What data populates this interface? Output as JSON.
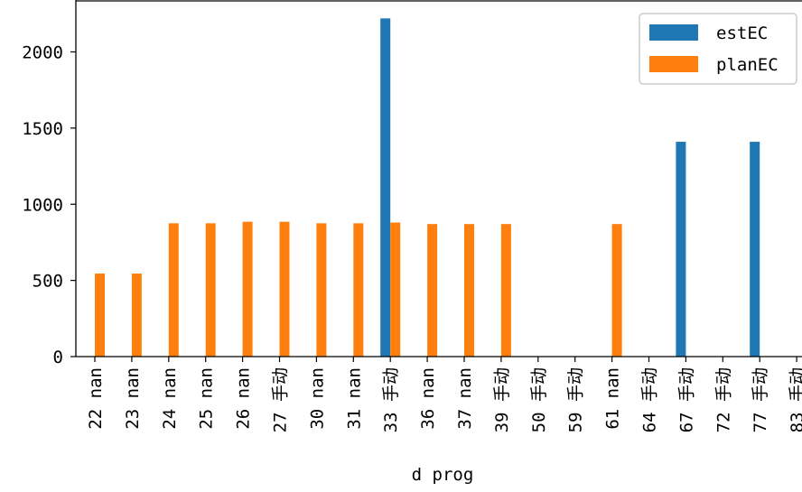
{
  "chart_data": {
    "type": "bar",
    "xlabel": "d prog",
    "ylabel": "",
    "ylim": [
      0,
      2300
    ],
    "yticks": [
      0,
      500,
      1000,
      1500,
      2000
    ],
    "legend_position": "top-right",
    "categories": [
      "22 nan",
      "23 nan",
      "24 nan",
      "25 nan",
      "26 nan",
      "27 手动",
      "30 nan",
      "31 nan",
      "33 手动",
      "36 nan",
      "37 nan",
      "39 手动",
      "50 手动",
      "59 手动",
      "61 nan",
      "64 手动",
      "67 手动",
      "72 手动",
      "77 手动",
      "83 手动"
    ],
    "series": [
      {
        "name": "estEC",
        "color": "#1f77b4",
        "values": [
          0,
          0,
          0,
          0,
          0,
          0,
          0,
          0,
          2220,
          0,
          0,
          0,
          0,
          0,
          0,
          0,
          1410,
          0,
          1410,
          0
        ]
      },
      {
        "name": "planEC",
        "color": "#ff7f0e",
        "values": [
          545,
          545,
          875,
          875,
          885,
          885,
          875,
          875,
          880,
          870,
          870,
          870,
          0,
          0,
          870,
          0,
          0,
          0,
          0,
          0
        ]
      }
    ]
  }
}
